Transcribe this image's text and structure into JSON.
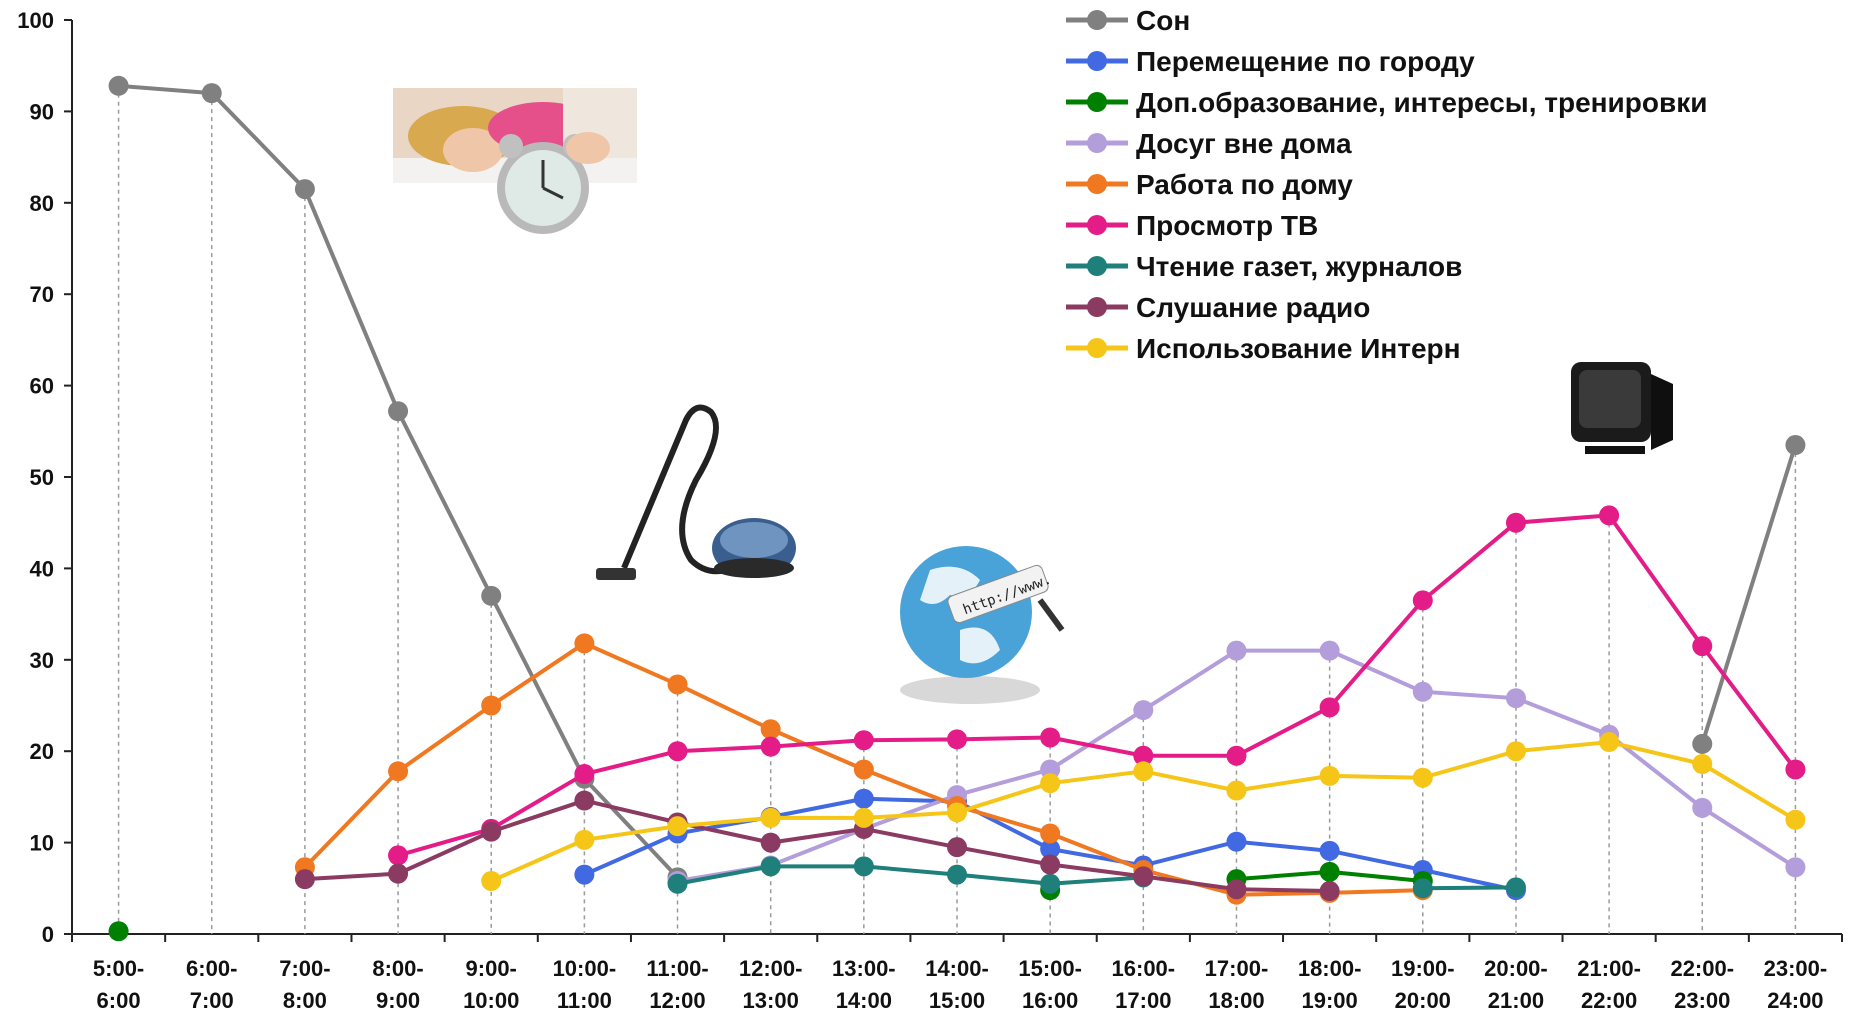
{
  "chart_data": {
    "type": "line",
    "title": "",
    "xlabel": "",
    "ylabel": "",
    "ylim": [
      0,
      100
    ],
    "yticks": [
      0,
      10,
      20,
      30,
      40,
      50,
      60,
      70,
      80,
      90,
      100
    ],
    "grid": "vertical dashed",
    "legend_position": "top-right",
    "categories": [
      [
        "5:00-",
        "6:00"
      ],
      [
        "6:00-",
        "7:00"
      ],
      [
        "7:00-",
        "8:00"
      ],
      [
        "8:00-",
        "9:00"
      ],
      [
        "9:00-",
        "10:00"
      ],
      [
        "10:00-",
        "11:00"
      ],
      [
        "11:00-",
        "12:00"
      ],
      [
        "12:00-",
        "13:00"
      ],
      [
        "13:00-",
        "14:00"
      ],
      [
        "14:00-",
        "15:00"
      ],
      [
        "15:00-",
        "16:00"
      ],
      [
        "16:00-",
        "17:00"
      ],
      [
        "17:00-",
        "18:00"
      ],
      [
        "18:00-",
        "19:00"
      ],
      [
        "19:00-",
        "20:00"
      ],
      [
        "20:00-",
        "21:00"
      ],
      [
        "21:00-",
        "22:00"
      ],
      [
        "22:00-",
        "23:00"
      ],
      [
        "23:00-",
        "24:00"
      ]
    ],
    "series": [
      {
        "name": "Сон",
        "color": "#808080",
        "values": [
          92.8,
          92,
          81.5,
          57.2,
          37,
          17,
          6.2,
          null,
          null,
          null,
          null,
          null,
          null,
          null,
          null,
          null,
          null,
          20.8,
          53.5
        ]
      },
      {
        "name": "Перемещение по городу",
        "color": "#4169E1",
        "values": [
          null,
          null,
          null,
          null,
          null,
          6.5,
          11,
          12.8,
          14.8,
          14.5,
          9.3,
          7.5,
          10.1,
          9.1,
          7,
          4.8,
          null,
          null,
          null
        ]
      },
      {
        "name": "Доп.образование, интересы, тренировки",
        "color": "#008000",
        "values": [
          0.3,
          null,
          null,
          null,
          null,
          null,
          null,
          null,
          null,
          null,
          4.8,
          null,
          6,
          6.8,
          5.8,
          null,
          null,
          null,
          null
        ]
      },
      {
        "name": "Досуг вне дома",
        "color": "#B39DDB",
        "values": [
          null,
          null,
          null,
          null,
          null,
          null,
          5.8,
          7.5,
          11.5,
          15.2,
          18,
          24.5,
          31,
          31,
          26.5,
          25.8,
          21.8,
          13.8,
          7.3
        ]
      },
      {
        "name": "Работа по дому",
        "color": "#F07820",
        "values": [
          null,
          null,
          7.3,
          17.8,
          25,
          31.8,
          27.3,
          22.4,
          18,
          14,
          11,
          7,
          4.3,
          4.5,
          4.8,
          null,
          null,
          null,
          null
        ]
      },
      {
        "name": "Просмотр ТВ",
        "color": "#E31C88",
        "values": [
          null,
          null,
          null,
          8.6,
          11.5,
          17.5,
          20,
          20.5,
          21.2,
          21.3,
          21.5,
          19.5,
          19.5,
          24.8,
          36.5,
          45,
          45.8,
          31.5,
          18
        ]
      },
      {
        "name": "Чтение газет, журналов",
        "color": "#1F7F7A",
        "values": [
          null,
          null,
          null,
          null,
          null,
          null,
          5.5,
          7.4,
          7.4,
          6.5,
          5.5,
          6.2,
          null,
          null,
          5,
          5.1,
          null,
          null,
          null
        ]
      },
      {
        "name": "Слушание радио",
        "color": "#8B3A62",
        "values": [
          null,
          null,
          6,
          6.6,
          11.2,
          14.6,
          12.2,
          10,
          11.5,
          9.5,
          7.6,
          6.3,
          4.9,
          4.7,
          null,
          null,
          null,
          null,
          null
        ]
      },
      {
        "name": "Использование Интерн",
        "color": "#F5C518",
        "values": [
          null,
          null,
          null,
          null,
          5.8,
          10.3,
          11.8,
          12.7,
          12.7,
          13.3,
          16.5,
          17.8,
          15.7,
          17.3,
          17.1,
          20,
          21,
          18.6,
          12.5
        ]
      }
    ]
  },
  "images": {
    "sleep": "sleeping-woman-alarm-clock-photo",
    "vacuum": "vacuum-cleaner-photo",
    "globe": "internet-globe-http-www",
    "tv": "crt-television"
  }
}
